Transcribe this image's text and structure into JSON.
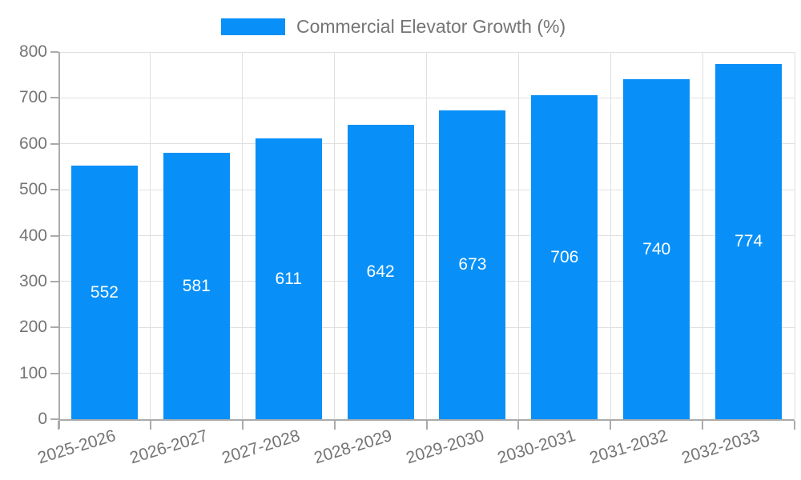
{
  "legend": {
    "label": "Commercial Elevator Growth (%)"
  },
  "colors": {
    "bar": "#0890F8",
    "text_gray": "#757575",
    "axis": "#ababab",
    "grid": "#e0e0e0",
    "value_label": "#ffffff"
  },
  "chart_data": {
    "type": "bar",
    "title": "Commercial Elevator Growth (%)",
    "categories": [
      "2025-2026",
      "2026-2027",
      "2027-2028",
      "2028-2029",
      "2029-2030",
      "2030-2031",
      "2031-2032",
      "2032-2033"
    ],
    "values": [
      552,
      581,
      611,
      642,
      673,
      706,
      740,
      774
    ],
    "bar_labels": [
      "552",
      "581",
      "611",
      "642",
      "673",
      "706",
      "740",
      "774"
    ],
    "xlabel": "",
    "ylabel": "",
    "ylim": [
      0,
      800
    ],
    "yticks": [
      0,
      100,
      200,
      300,
      400,
      500,
      600,
      700,
      800
    ],
    "ytick_step": 100,
    "grid": "on",
    "legend_position": "top-center",
    "bar_label_position": "inside-middle"
  }
}
